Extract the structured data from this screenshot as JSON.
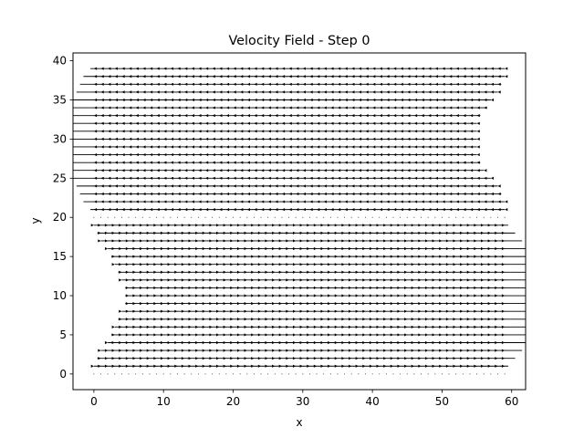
{
  "chart_data": {
    "type": "quiver",
    "title": "Velocity Field - Step 0",
    "xlabel": "x",
    "ylabel": "y",
    "xlim": [
      -3,
      62
    ],
    "ylim": [
      -2,
      41
    ],
    "xticks": [
      0,
      10,
      20,
      30,
      40,
      50,
      60
    ],
    "yticks": [
      0,
      5,
      10,
      15,
      20,
      25,
      30,
      35,
      40
    ],
    "grid": false,
    "legend": "none",
    "arrow_color": "#000000",
    "grid_x": [
      0,
      59
    ],
    "grid_y": [
      0,
      39
    ],
    "grid_spacing": 1,
    "upper_band": {
      "y_range": [
        21,
        39
      ],
      "direction": "left",
      "max_speed_y": 30.5
    },
    "lower_band": {
      "y_range": [
        1,
        19
      ],
      "direction": "right",
      "max_speed_y": 10
    },
    "rows": [
      {
        "y": 39,
        "tail_x": 59,
        "tip_x": -0.5
      },
      {
        "y": 38,
        "tail_x": 59,
        "tip_x": -1.5
      },
      {
        "y": 37,
        "tail_x": 58.5,
        "tip_x": -2
      },
      {
        "y": 36,
        "tail_x": 58,
        "tip_x": -2.5
      },
      {
        "y": 35,
        "tail_x": 57,
        "tip_x": -3
      },
      {
        "y": 34,
        "tail_x": 56.5,
        "tip_x": -3
      },
      {
        "y": 33,
        "tail_x": 55.5,
        "tip_x": -3
      },
      {
        "y": 32,
        "tail_x": 55,
        "tip_x": -3
      },
      {
        "y": 31,
        "tail_x": 55,
        "tip_x": -3
      },
      {
        "y": 30,
        "tail_x": 55,
        "tip_x": -3
      },
      {
        "y": 29,
        "tail_x": 55,
        "tip_x": -3
      },
      {
        "y": 28,
        "tail_x": 55,
        "tip_x": -3
      },
      {
        "y": 27,
        "tail_x": 55.5,
        "tip_x": -3
      },
      {
        "y": 26,
        "tail_x": 56,
        "tip_x": -3
      },
      {
        "y": 25,
        "tail_x": 57,
        "tip_x": -3
      },
      {
        "y": 24,
        "tail_x": 58,
        "tip_x": -2.5
      },
      {
        "y": 23,
        "tail_x": 58.5,
        "tip_x": -2
      },
      {
        "y": 22,
        "tail_x": 59,
        "tip_x": -1.5
      },
      {
        "y": 21,
        "tail_x": 59,
        "tip_x": -0.5
      },
      {
        "y": 20,
        "tail_x": 0,
        "tip_x": 0
      },
      {
        "y": 19,
        "tail_x": 0,
        "tip_x": 59.5
      },
      {
        "y": 18,
        "tail_x": 0.5,
        "tip_x": 60.5
      },
      {
        "y": 17,
        "tail_x": 1,
        "tip_x": 61.5
      },
      {
        "y": 16,
        "tail_x": 2,
        "tip_x": 62
      },
      {
        "y": 15,
        "tail_x": 2.5,
        "tip_x": 62
      },
      {
        "y": 14,
        "tail_x": 3,
        "tip_x": 62
      },
      {
        "y": 13,
        "tail_x": 3.5,
        "tip_x": 62
      },
      {
        "y": 12,
        "tail_x": 4,
        "tip_x": 62
      },
      {
        "y": 11,
        "tail_x": 4.5,
        "tip_x": 62
      },
      {
        "y": 10,
        "tail_x": 4.5,
        "tip_x": 62
      },
      {
        "y": 9,
        "tail_x": 4.5,
        "tip_x": 62
      },
      {
        "y": 8,
        "tail_x": 4,
        "tip_x": 62
      },
      {
        "y": 7,
        "tail_x": 3.5,
        "tip_x": 62
      },
      {
        "y": 6,
        "tail_x": 3,
        "tip_x": 62
      },
      {
        "y": 5,
        "tail_x": 2.5,
        "tip_x": 62
      },
      {
        "y": 4,
        "tail_x": 2,
        "tip_x": 62
      },
      {
        "y": 3,
        "tail_x": 1,
        "tip_x": 61.5
      },
      {
        "y": 2,
        "tail_x": 0.5,
        "tip_x": 60.5
      },
      {
        "y": 1,
        "tail_x": 0,
        "tip_x": 59.5
      },
      {
        "y": 0,
        "tail_x": 0,
        "tip_x": 0
      }
    ]
  }
}
